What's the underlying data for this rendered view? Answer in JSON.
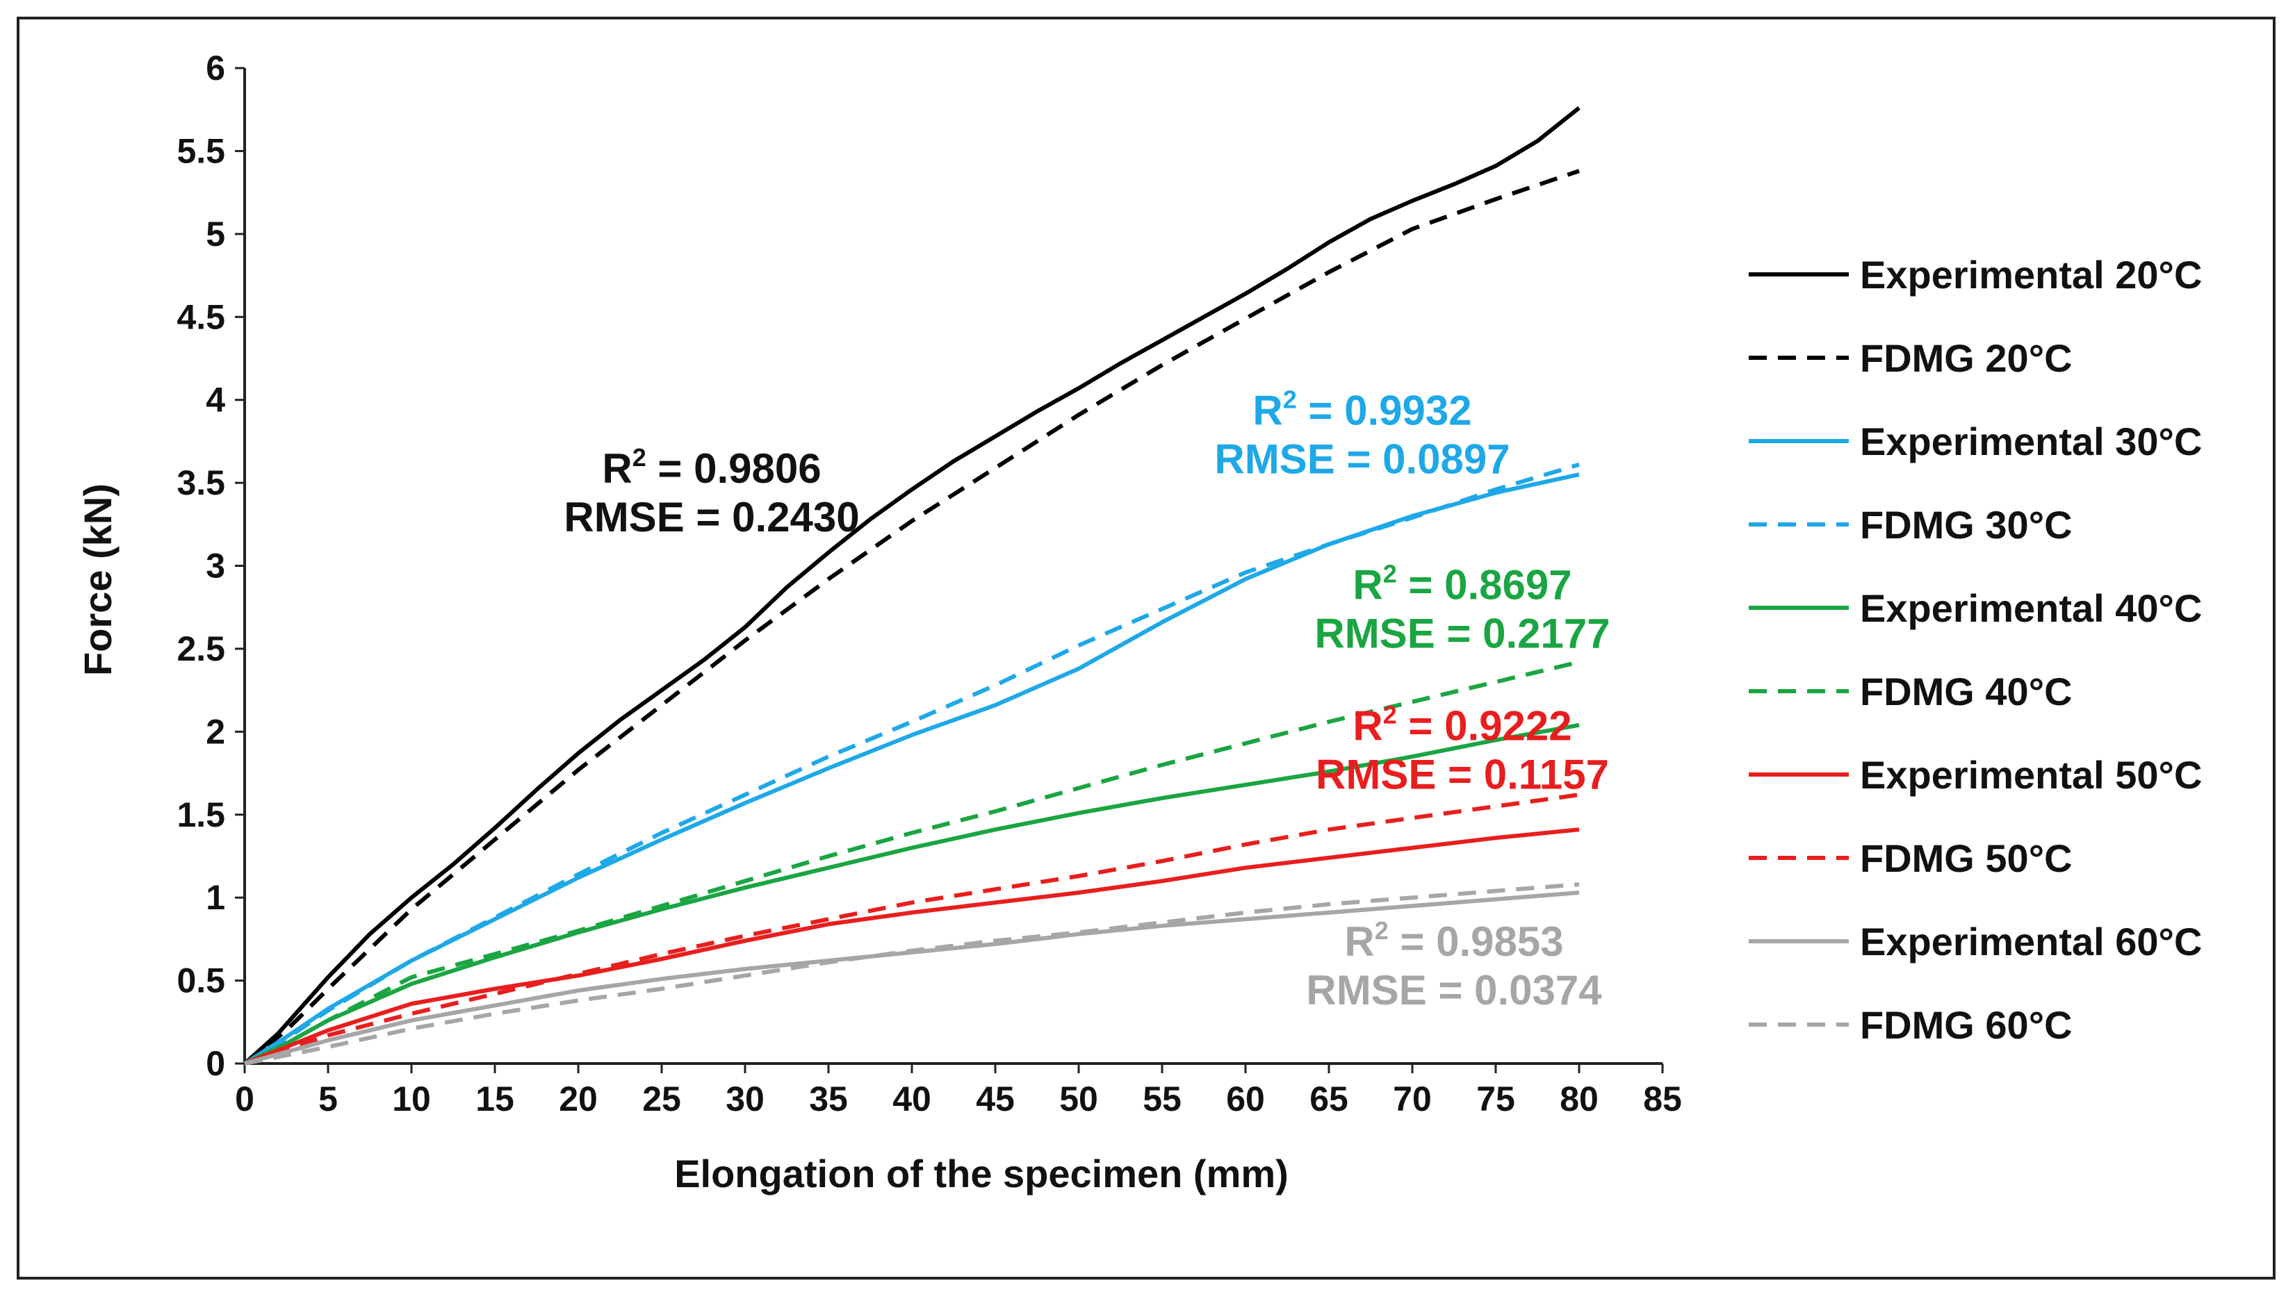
{
  "chart_data": {
    "type": "line",
    "title": "",
    "xlabel": "Elongation of the specimen (mm)",
    "ylabel": "Force (kN)",
    "xlim": [
      0,
      85
    ],
    "ylim": [
      0,
      6
    ],
    "xticks": [
      0,
      5,
      10,
      15,
      20,
      25,
      30,
      35,
      40,
      45,
      50,
      55,
      60,
      65,
      70,
      75,
      80,
      85
    ],
    "yticks": [
      "0",
      "0.5",
      "1",
      "1.5",
      "2",
      "2.5",
      "3",
      "3.5",
      "4",
      "4.5",
      "5",
      "5.5",
      "6"
    ],
    "grid": false,
    "legend_position": "right",
    "series": [
      {
        "name": "Experimental 20°C",
        "color": "#000000",
        "dash": "solid",
        "x": [
          0,
          2,
          5,
          7.5,
          10,
          12.5,
          15,
          17.5,
          20,
          22.5,
          25,
          27.5,
          30,
          32.5,
          35,
          37.5,
          40,
          42.5,
          45,
          47.5,
          50,
          52.5,
          55,
          57.5,
          60,
          62.5,
          65,
          67.5,
          70,
          72.5,
          75,
          77.5,
          80
        ],
        "y": [
          0,
          0.18,
          0.52,
          0.78,
          1.0,
          1.2,
          1.42,
          1.65,
          1.87,
          2.07,
          2.25,
          2.43,
          2.63,
          2.87,
          3.08,
          3.28,
          3.46,
          3.63,
          3.78,
          3.93,
          4.07,
          4.22,
          4.36,
          4.5,
          4.64,
          4.79,
          4.95,
          5.09,
          5.2,
          5.3,
          5.41,
          5.56,
          5.76
        ]
      },
      {
        "name": "FDMG 20°C",
        "color": "#000000",
        "dash": "dashed",
        "x": [
          0,
          2.5,
          5,
          10,
          15,
          20,
          25,
          30,
          35,
          40,
          45,
          50,
          55,
          60,
          65,
          70,
          75,
          80
        ],
        "y": [
          0,
          0.2,
          0.45,
          0.93,
          1.35,
          1.77,
          2.16,
          2.55,
          2.92,
          3.27,
          3.59,
          3.91,
          4.21,
          4.49,
          4.77,
          5.03,
          5.21,
          5.38
        ]
      },
      {
        "name": "Experimental 30°C",
        "color": "#1ea8e8",
        "dash": "solid",
        "x": [
          0,
          2.5,
          5,
          10,
          15,
          20,
          25,
          30,
          35,
          40,
          45,
          50,
          55,
          60,
          65,
          70,
          75,
          80
        ],
        "y": [
          0,
          0.16,
          0.33,
          0.62,
          0.87,
          1.12,
          1.35,
          1.57,
          1.78,
          1.98,
          2.16,
          2.38,
          2.66,
          2.92,
          3.13,
          3.3,
          3.44,
          3.55
        ]
      },
      {
        "name": "FDMG 30°C",
        "color": "#1ea8e8",
        "dash": "dashed",
        "x": [
          0,
          2.5,
          5,
          10,
          15,
          20,
          25,
          30,
          35,
          40,
          45,
          50,
          55,
          60,
          65,
          70,
          75,
          80
        ],
        "y": [
          0,
          0.15,
          0.32,
          0.62,
          0.88,
          1.14,
          1.39,
          1.62,
          1.85,
          2.06,
          2.28,
          2.52,
          2.74,
          2.96,
          3.13,
          3.29,
          3.46,
          3.61
        ]
      },
      {
        "name": "Experimental 40°C",
        "color": "#1aa542",
        "dash": "solid",
        "x": [
          0,
          2.5,
          5,
          10,
          15,
          20,
          25,
          30,
          35,
          40,
          45,
          50,
          55,
          60,
          65,
          70,
          75,
          80
        ],
        "y": [
          0,
          0.12,
          0.26,
          0.48,
          0.64,
          0.79,
          0.93,
          1.06,
          1.18,
          1.3,
          1.41,
          1.51,
          1.6,
          1.68,
          1.76,
          1.85,
          1.95,
          2.04
        ]
      },
      {
        "name": "FDMG 40°C",
        "color": "#1aa542",
        "dash": "dashed",
        "x": [
          0,
          2.5,
          5,
          10,
          15,
          20,
          25,
          30,
          35,
          40,
          45,
          50,
          55,
          60,
          65,
          70,
          75,
          80
        ],
        "y": [
          0,
          0.12,
          0.26,
          0.52,
          0.66,
          0.8,
          0.95,
          1.1,
          1.25,
          1.39,
          1.52,
          1.66,
          1.8,
          1.93,
          2.06,
          2.18,
          2.3,
          2.42
        ]
      },
      {
        "name": "Experimental 50°C",
        "color": "#e81e1e",
        "dash": "solid",
        "x": [
          0,
          2.5,
          5,
          10,
          15,
          20,
          25,
          30,
          35,
          40,
          45,
          50,
          55,
          60,
          65,
          70,
          75,
          80
        ],
        "y": [
          0,
          0.1,
          0.2,
          0.36,
          0.45,
          0.53,
          0.63,
          0.74,
          0.84,
          0.91,
          0.97,
          1.03,
          1.1,
          1.18,
          1.24,
          1.3,
          1.36,
          1.41
        ]
      },
      {
        "name": "FDMG 50°C",
        "color": "#e81e1e",
        "dash": "dashed",
        "x": [
          0,
          2.5,
          5,
          10,
          15,
          20,
          25,
          30,
          35,
          40,
          45,
          50,
          55,
          60,
          65,
          70,
          75,
          80
        ],
        "y": [
          0,
          0.08,
          0.17,
          0.3,
          0.42,
          0.54,
          0.66,
          0.77,
          0.87,
          0.97,
          1.05,
          1.13,
          1.22,
          1.32,
          1.41,
          1.48,
          1.55,
          1.62
        ]
      },
      {
        "name": "Experimental 60°C",
        "color": "#a6a6a6",
        "dash": "solid",
        "x": [
          0,
          2.5,
          5,
          10,
          15,
          20,
          25,
          30,
          35,
          40,
          45,
          50,
          55,
          60,
          65,
          70,
          75,
          80
        ],
        "y": [
          0,
          0.07,
          0.14,
          0.26,
          0.35,
          0.44,
          0.51,
          0.57,
          0.62,
          0.67,
          0.72,
          0.78,
          0.83,
          0.87,
          0.91,
          0.95,
          0.99,
          1.03
        ]
      },
      {
        "name": "FDMG 60°C",
        "color": "#a6a6a6",
        "dash": "dashed",
        "x": [
          0,
          2.5,
          5,
          10,
          15,
          20,
          25,
          30,
          35,
          40,
          45,
          50,
          55,
          60,
          65,
          70,
          75,
          80
        ],
        "y": [
          0,
          0.05,
          0.1,
          0.21,
          0.3,
          0.38,
          0.45,
          0.53,
          0.61,
          0.68,
          0.74,
          0.79,
          0.85,
          0.91,
          0.96,
          1.0,
          1.04,
          1.08
        ]
      }
    ],
    "annotations": [
      {
        "r2": "0.9806",
        "rmse": "0.2430",
        "color": "#111111",
        "anchor_x": 28,
        "anchor_y": 3.5
      },
      {
        "r2": "0.9932",
        "rmse": "0.0897",
        "color": "#1ea8e8",
        "anchor_x": 67,
        "anchor_y": 3.85
      },
      {
        "r2": "0.8697",
        "rmse": "0.2177",
        "color": "#1aa542",
        "anchor_x": 73,
        "anchor_y": 2.8
      },
      {
        "r2": "0.9222",
        "rmse": "0.1157",
        "color": "#e81e1e",
        "anchor_x": 73,
        "anchor_y": 1.95
      },
      {
        "r2": "0.9853",
        "rmse": "0.0374",
        "color": "#a6a6a6",
        "anchor_x": 72.5,
        "anchor_y": 0.65
      }
    ],
    "annotation_labels": {
      "r2_prefix": "R",
      "r2_sup": "2",
      "r2_eq": " = ",
      "rmse_prefix": "RMSE = "
    }
  }
}
